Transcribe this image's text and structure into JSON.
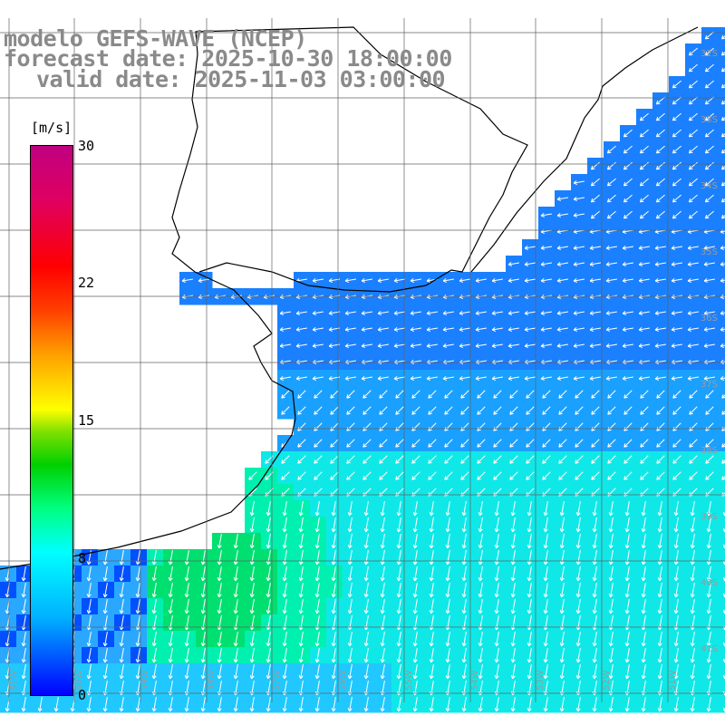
{
  "titles": {
    "line1": "modelo GEFS-WAVE (NCEP)",
    "line2": "forecast date: 2025-10-30 18:00:00",
    "line3": "valid date: 2025-11-03 03:00:00"
  },
  "colorbar": {
    "unit": "[m/s]",
    "ticks": [
      "30",
      "22",
      "15",
      "8",
      "0"
    ],
    "range": [
      0,
      30
    ]
  },
  "grid_labels": {
    "lat": [
      "32S",
      "33S",
      "34S",
      "35S",
      "36S",
      "37S",
      "38S",
      "39S",
      "40S",
      "41S"
    ],
    "lon": [
      "61W",
      "60W",
      "59W",
      "58W",
      "57W",
      "56W",
      "55W",
      "54W",
      "53W",
      "52W",
      "51W"
    ]
  },
  "colors": {
    "land": "#ffffff",
    "coast": "#000000",
    "grid": "#606060",
    "arrow": "#ffffff",
    "title": "#8a8a8a"
  }
}
